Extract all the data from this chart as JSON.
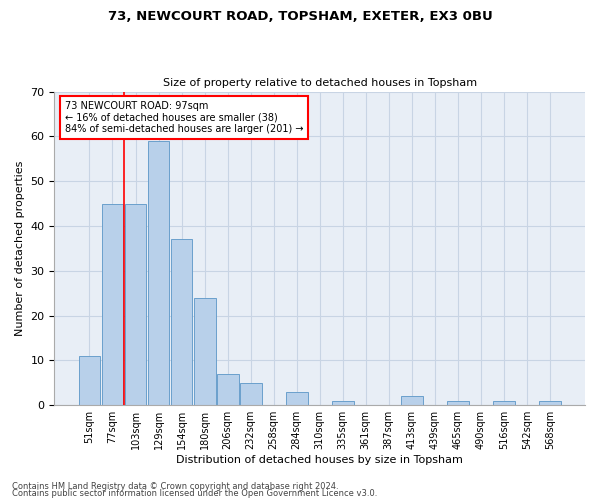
{
  "title1": "73, NEWCOURT ROAD, TOPSHAM, EXETER, EX3 0BU",
  "title2": "Size of property relative to detached houses in Topsham",
  "xlabel": "Distribution of detached houses by size in Topsham",
  "ylabel": "Number of detached properties",
  "categories": [
    "51sqm",
    "77sqm",
    "103sqm",
    "129sqm",
    "154sqm",
    "180sqm",
    "206sqm",
    "232sqm",
    "258sqm",
    "284sqm",
    "310sqm",
    "335sqm",
    "361sqm",
    "387sqm",
    "413sqm",
    "439sqm",
    "465sqm",
    "490sqm",
    "516sqm",
    "542sqm",
    "568sqm"
  ],
  "values": [
    11,
    45,
    45,
    59,
    37,
    24,
    7,
    5,
    0,
    3,
    0,
    1,
    0,
    0,
    2,
    0,
    1,
    0,
    1,
    0,
    1
  ],
  "bar_color": "#b8d0ea",
  "bar_edge_color": "#6aa0cc",
  "grid_color": "#c8d4e4",
  "background_color": "#e8eef6",
  "red_line_x": 1.5,
  "annotation_line1": "73 NEWCOURT ROAD: 97sqm",
  "annotation_line2": "← 16% of detached houses are smaller (38)",
  "annotation_line3": "84% of semi-detached houses are larger (201) →",
  "ylim": [
    0,
    70
  ],
  "yticks": [
    0,
    10,
    20,
    30,
    40,
    50,
    60,
    70
  ],
  "footer1": "Contains HM Land Registry data © Crown copyright and database right 2024.",
  "footer2": "Contains public sector information licensed under the Open Government Licence v3.0."
}
